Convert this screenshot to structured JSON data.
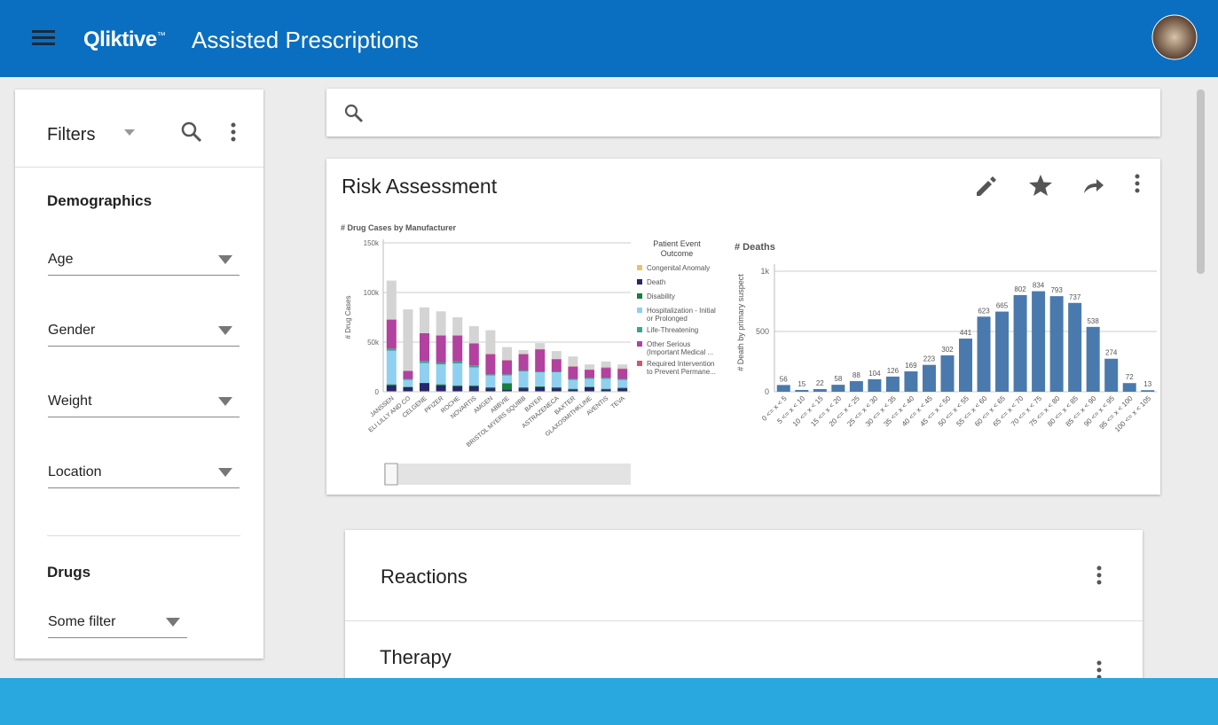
{
  "header": {
    "brand": "Qliktive",
    "trademark": "™",
    "title": "Assisted Prescriptions"
  },
  "filters": {
    "title": "Filters",
    "sections": [
      {
        "title": "Demographics",
        "fields": [
          "Age",
          "Gender",
          "Weight",
          "Location"
        ]
      },
      {
        "title": "Drugs",
        "fields": [
          "Some filter"
        ]
      }
    ]
  },
  "risk": {
    "title": "Risk Assessment"
  },
  "cards": [
    "Reactions",
    "Therapy"
  ],
  "chart_data": [
    {
      "type": "stacked_bar",
      "title": "# Drug Cases by Manufacturer",
      "y_label": "# Drug Cases",
      "legend_title": "Patient Event Outcome",
      "grid": true,
      "categories": [
        "JANSSEN",
        "ELI LILLY AND CO",
        "CELGENE",
        "PFIZER",
        "ROCHE",
        "NOVARTIS",
        "AMGEN",
        "ABBVIE",
        "BRISTOL MYERS SQUIBB",
        "BAYER",
        "ASTRAZENECA",
        "BAXTER",
        "GLAXOSMITHKLINE",
        "AVENTIS",
        "TEVA"
      ],
      "ylim": [
        0,
        150000
      ],
      "yticks": [
        0,
        {
          "value": 50000,
          "label": "50k"
        },
        {
          "value": 100000,
          "label": "100k"
        },
        {
          "value": 150000,
          "label": "150k"
        }
      ],
      "series": [
        {
          "name": "Congenital Anomaly",
          "color": "#e3c56b",
          "values": [
            500,
            500,
            500,
            500,
            500,
            500,
            500,
            500,
            500,
            500,
            500,
            500,
            500,
            500,
            500
          ]
        },
        {
          "name": "Death",
          "color": "#26266e",
          "values": [
            6000,
            4000,
            8000,
            6000,
            5000,
            5000,
            3000,
            2000,
            3000,
            4000,
            3000,
            2000,
            4000,
            2000,
            3000
          ]
        },
        {
          "name": "Disability",
          "color": "#17803d",
          "values": [
            1000,
            500,
            500,
            1000,
            1000,
            1000,
            1000,
            6000,
            1000,
            1000,
            1000,
            500,
            500,
            500,
            500
          ]
        },
        {
          "name": "Hospitalization - Initial or Prolonged",
          "color": "#8fd0f0",
          "values": [
            34000,
            7000,
            20000,
            20000,
            22000,
            18000,
            12000,
            8000,
            16000,
            14000,
            15000,
            9000,
            8000,
            10000,
            8000
          ]
        },
        {
          "name": "Life-Threatening",
          "color": "#3aa38c",
          "values": [
            2000,
            1000,
            2000,
            2000,
            2000,
            2000,
            1000,
            1000,
            1000,
            1000,
            1000,
            1000,
            1000,
            1000,
            1000
          ]
        },
        {
          "name": "Other Serious (Important Medical ...",
          "color": "#b2419f",
          "values": [
            29000,
            8000,
            28000,
            27000,
            26000,
            22000,
            20000,
            14000,
            16000,
            22000,
            12000,
            12000,
            8000,
            10000,
            10000
          ]
        },
        {
          "name": "Required Intervention to Prevent Permane...",
          "color": "#d4566a",
          "values": [
            500,
            0,
            0,
            500,
            500,
            500,
            500,
            500,
            500,
            500,
            500,
            500,
            500,
            500,
            500
          ]
        },
        {
          "color": "#d4d4d4",
          "values": [
            39000,
            62000,
            26000,
            24000,
            18000,
            17000,
            24000,
            13000,
            4000,
            6000,
            8000,
            10000,
            5000,
            6000,
            4000
          ]
        }
      ]
    },
    {
      "type": "bar",
      "title": "# Deaths",
      "y_label": "# Death by primary suspect",
      "color": "#4a7aad",
      "grid": true,
      "categories": [
        "0 <= x < 5",
        "5 <= x < 10",
        "10 <= x < 15",
        "15 <= x < 20",
        "20 <= x < 25",
        "25 <= x < 30",
        "30 <= x < 35",
        "35 <= x < 40",
        "40 <= x < 45",
        "45 <= x < 50",
        "50 <= x < 55",
        "55 <= x < 60",
        "60 <= x < 65",
        "65 <= x < 70",
        "70 <= x < 75",
        "75 <= x < 80",
        "80 <= x < 85",
        "85 <= x < 90",
        "90 <= x < 95",
        "95 <= x < 100",
        "100 <= x < 105"
      ],
      "values": [
        56,
        15,
        22,
        58,
        88,
        104,
        126,
        169,
        223,
        302,
        441,
        623,
        665,
        802,
        834,
        793,
        737,
        538,
        274,
        72,
        13
      ],
      "ylim": [
        0,
        1000
      ],
      "yticks": [
        0,
        500,
        {
          "value": 1000,
          "label": "1k"
        }
      ]
    }
  ]
}
